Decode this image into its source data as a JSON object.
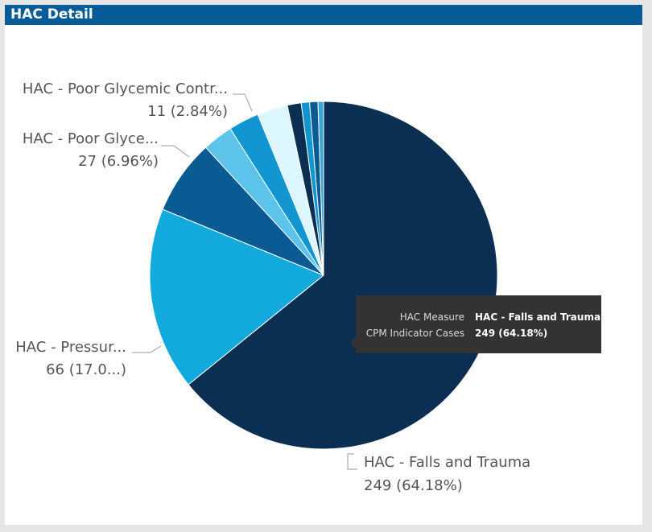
{
  "title": "HAC Detail",
  "colors": {
    "title_bar": "#075c97",
    "slices": [
      "#0a2f53",
      "#12a9dc",
      "#0a5b94",
      "#5cc4ea",
      "#1296d2",
      "#dcf7ff",
      "#0a2f53",
      "#1296d2",
      "#0a5b94",
      "#3aa6d8"
    ]
  },
  "chart_data": {
    "type": "pie",
    "values": [
      249,
      66,
      27,
      11,
      11,
      11,
      5,
      3,
      3,
      2
    ],
    "data_labels": [
      {
        "name": "HAC - Falls and Trauma",
        "value": "249 (64.18%)"
      },
      {
        "name": "HAC - Pressur...",
        "value": "66 (17.0...)"
      },
      {
        "name": "HAC - Poor Glyce...",
        "value": "27 (6.96%)"
      },
      {
        "name": "HAC - Poor Glycemic Contr...",
        "value": "11 (2.84%)"
      }
    ]
  },
  "tooltip": {
    "rows": [
      {
        "key": "HAC Measure",
        "value": "HAC - Falls and Trauma"
      },
      {
        "key": "CPM Indicator Cases",
        "value": "249 (64.18%)"
      }
    ]
  }
}
